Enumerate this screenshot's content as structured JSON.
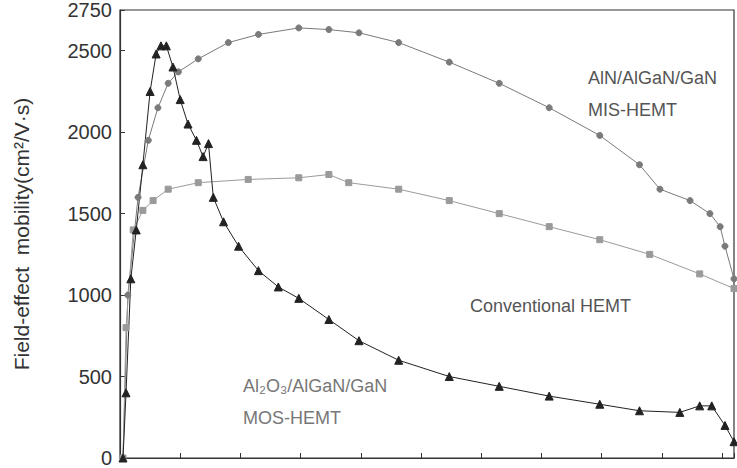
{
  "chart_data": {
    "type": "line",
    "y_label": "Field-effect  mobility(cm²/V·s)",
    "xlim": [
      0,
      10.2
    ],
    "xticks": [
      0,
      1,
      2,
      3,
      4,
      5,
      6,
      7,
      8,
      9,
      10
    ],
    "ylim": [
      0,
      2750
    ],
    "yticks": [
      0,
      500,
      1000,
      1500,
      2000,
      2500
    ],
    "grid": false,
    "tick_labels": "y",
    "series": [
      {
        "name": "AlN/AlGaN/GaN\nMIS-HEMT",
        "color": "#7a7a7a",
        "marker": "circle",
        "line_style": "solid",
        "x": [
          0.05,
          0.13,
          0.3,
          0.47,
          0.63,
          0.8,
          0.97,
          1.3,
          1.8,
          2.3,
          2.97,
          3.47,
          3.97,
          4.63,
          5.47,
          6.3,
          7.13,
          7.97,
          8.63,
          8.97,
          9.47,
          9.8,
          9.97,
          10.05,
          10.2
        ],
        "values": [
          0,
          1000,
          1600,
          1950,
          2150,
          2300,
          2370,
          2450,
          2550,
          2600,
          2640,
          2630,
          2610,
          2550,
          2430,
          2300,
          2150,
          1980,
          1800,
          1650,
          1580,
          1500,
          1420,
          1300,
          1100
        ]
      },
      {
        "name": "Conventional HEMT",
        "color": "#9a9a9a",
        "marker": "square",
        "line_style": "solid",
        "x": [
          0.05,
          0.1,
          0.22,
          0.38,
          0.55,
          0.8,
          1.3,
          2.13,
          2.97,
          3.47,
          3.8,
          4.63,
          5.47,
          6.3,
          7.13,
          7.97,
          8.8,
          9.63,
          10.2
        ],
        "values": [
          0,
          800,
          1400,
          1520,
          1580,
          1650,
          1690,
          1710,
          1720,
          1740,
          1690,
          1650,
          1580,
          1500,
          1420,
          1340,
          1250,
          1130,
          1040
        ]
      },
      {
        "name": "Al₂O₃/AlGaN/GaN\nMOS-HEMT",
        "color": "#222222",
        "marker": "triangle",
        "line_style": "solid",
        "x": [
          0.05,
          0.1,
          0.18,
          0.27,
          0.38,
          0.5,
          0.6,
          0.68,
          0.77,
          0.88,
          1.0,
          1.13,
          1.27,
          1.38,
          1.47,
          1.55,
          1.72,
          1.97,
          2.3,
          2.63,
          2.97,
          3.47,
          3.97,
          4.63,
          5.47,
          6.3,
          7.13,
          7.97,
          8.63,
          9.3,
          9.63,
          9.83,
          10.05,
          10.2
        ],
        "values": [
          0,
          400,
          1100,
          1400,
          1800,
          2250,
          2480,
          2530,
          2530,
          2400,
          2200,
          2050,
          1950,
          1850,
          1930,
          1600,
          1450,
          1300,
          1150,
          1050,
          980,
          850,
          720,
          600,
          500,
          440,
          380,
          330,
          290,
          280,
          320,
          320,
          200,
          100
        ]
      }
    ]
  }
}
